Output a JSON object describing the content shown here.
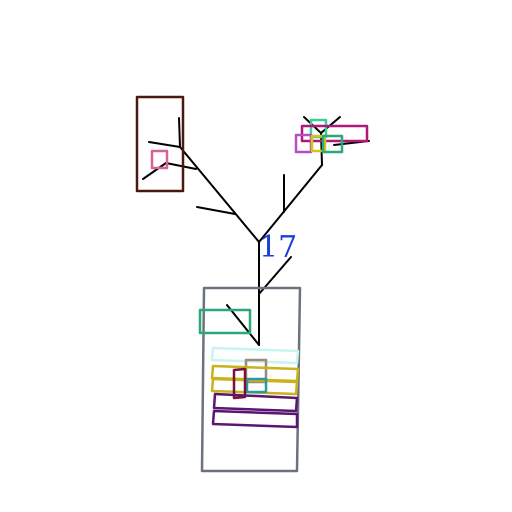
{
  "label": {
    "text": "17",
    "color": "#1a3fd6"
  },
  "colors": {
    "branch": "#000000",
    "dark_brown": "#4a1a10",
    "pink": "#d9609a",
    "magenta": "#b0187a",
    "mint": "#3ccf9a",
    "teal_green": "#2aa876",
    "violet": "#b24fc8",
    "gold": "#d8c418",
    "slate": "#6b7280",
    "pale_cyan": "#c8f4f0",
    "olive_gold": "#c9b21a",
    "maroon": "#7a1238",
    "teal": "#2a9a9a",
    "purple": "#5a1670",
    "taupe": "#a08878"
  }
}
